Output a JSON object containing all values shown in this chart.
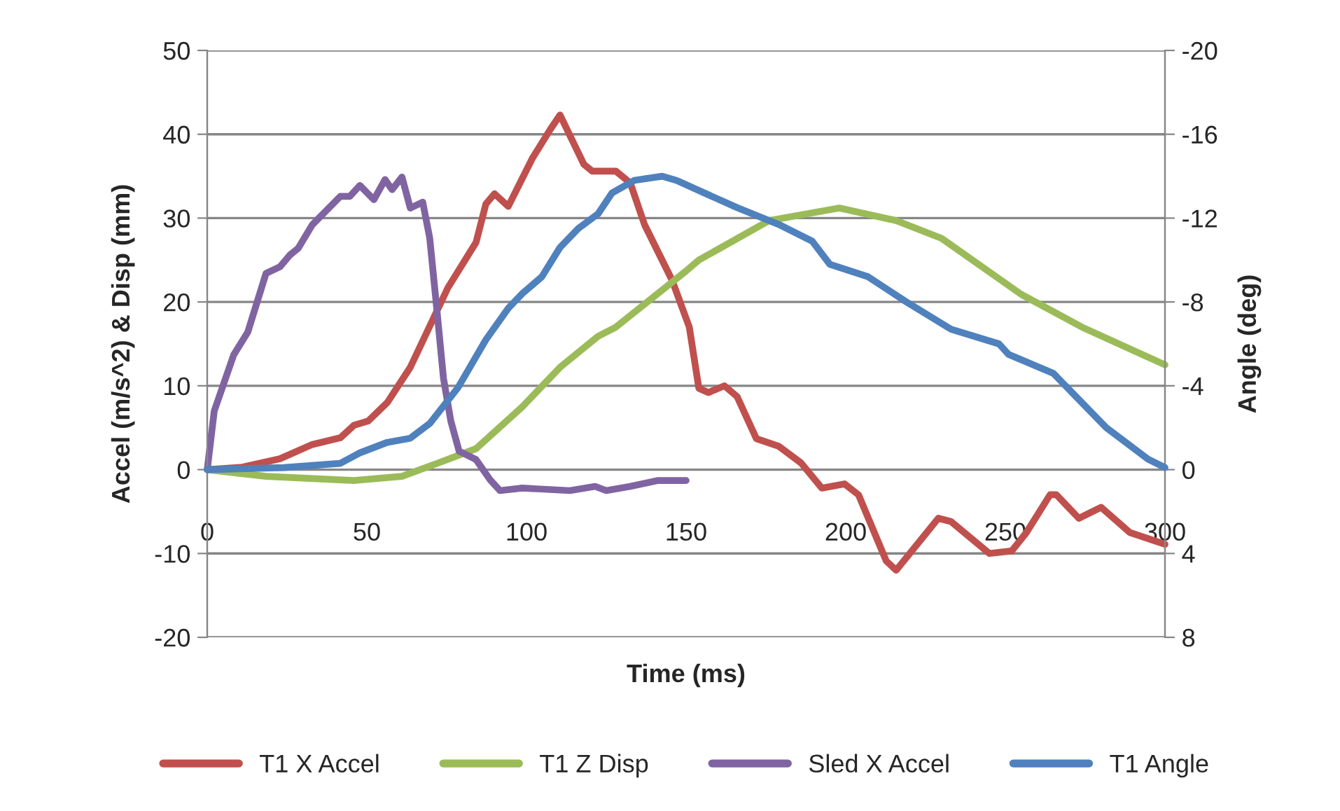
{
  "chart_data": {
    "type": "line",
    "xlabel": "Time (ms)",
    "ylabel": "Accel (m/s^2) & Disp (mm)",
    "y2label": "Angle (deg)",
    "xlim": [
      0,
      300
    ],
    "xticks": [
      0,
      50,
      100,
      150,
      200,
      250,
      300
    ],
    "ylim": [
      -20,
      50
    ],
    "yticks": [
      -20,
      -10,
      0,
      10,
      20,
      30,
      40,
      50
    ],
    "y2lim": [
      8,
      -20
    ],
    "y2ticks": [
      -20,
      -16,
      -12,
      -8,
      -4,
      0,
      4,
      8
    ],
    "grid": "y",
    "legend": "bottom",
    "marker": "none",
    "line_style": "solid",
    "series": [
      {
        "name": "T1 X Accel",
        "color": "#c0504d",
        "x": [
          0,
          11,
          22.8,
          32.9,
          41.7,
          46,
          50.4,
          56.4,
          63.6,
          75.4,
          84.2,
          87.3,
          90,
          94.3,
          101.8,
          107.5,
          110.5,
          118,
          120.6,
          128,
          132.5,
          137,
          145.6,
          151,
          154,
          157,
          162,
          166,
          172,
          179,
          186,
          192.5,
          199.6,
          204,
          212.7,
          215.8,
          229,
          233,
          245,
          252,
          256.6,
          264,
          266,
          273,
          280,
          289,
          300
        ],
        "values": [
          0,
          0.3,
          1.3,
          3,
          3.8,
          5.3,
          5.8,
          8,
          12.2,
          21.7,
          27.1,
          31.7,
          32.9,
          31.4,
          37.1,
          40.6,
          42.3,
          36.4,
          35.6,
          35.6,
          34.2,
          29.2,
          22.6,
          17,
          9.7,
          9.2,
          10,
          8.7,
          3.7,
          2.8,
          0.8,
          -2.2,
          -1.7,
          -3,
          -10.9,
          -12,
          -5.8,
          -6.2,
          -10,
          -9.7,
          -7.5,
          -3,
          -3,
          -5.8,
          -4.5,
          -7.5,
          -8.9
        ]
      },
      {
        "name": "T1 Z Disp",
        "color": "#9bbb59",
        "x": [
          0,
          18.4,
          46,
          61,
          72.4,
          84.2,
          98.7,
          110.5,
          122.4,
          128,
          150,
          154,
          176,
          198,
          215.8,
          230,
          255,
          274,
          300
        ],
        "values": [
          0,
          -0.8,
          -1.3,
          -0.8,
          0.8,
          2.5,
          7.5,
          12.2,
          15.9,
          17,
          23.7,
          25,
          29.7,
          31.2,
          29.7,
          27.6,
          20.9,
          17,
          12.5
        ]
      },
      {
        "name": "Sled X Accel",
        "color": "#8064a2",
        "x": [
          0,
          2.2,
          8.3,
          12.7,
          18.4,
          22.8,
          25.9,
          28.5,
          32.9,
          41.7,
          44.7,
          47.8,
          52.2,
          55.7,
          57.9,
          61,
          63.6,
          67.5,
          69.7,
          71.9,
          74,
          76.3,
          78.9,
          84.2,
          88.6,
          91.7,
          98.7,
          113.6,
          121.5,
          125,
          132.5,
          141,
          150
        ],
        "values": [
          0,
          7,
          13.7,
          16.4,
          23.4,
          24.2,
          25.6,
          26.4,
          29.2,
          32.6,
          32.6,
          33.9,
          32.2,
          34.6,
          33.4,
          34.9,
          31.2,
          31.9,
          27.6,
          19.2,
          10.9,
          5.8,
          2.2,
          1.2,
          -1.2,
          -2.5,
          -2.2,
          -2.5,
          -2,
          -2.5,
          -2,
          -1.3,
          -1.3
        ]
      },
      {
        "name": "T1 Angle",
        "color": "#4f81bd",
        "axis": "y2",
        "x": [
          0,
          24,
          41.7,
          47.8,
          56.4,
          63.6,
          69.7,
          78.5,
          87.3,
          94.3,
          98.7,
          104.8,
          110.5,
          116.2,
          122.4,
          126.8,
          133.8,
          142.5,
          147,
          155.7,
          166,
          179,
          189.5,
          195,
          207,
          219,
          233,
          248,
          251,
          265,
          281.6,
          294.7,
          300
        ],
        "values": [
          0,
          -0.1,
          -0.3,
          -0.8,
          -1.3,
          -1.5,
          -2.2,
          -3.9,
          -6.2,
          -7.7,
          -8.4,
          -9.2,
          -10.6,
          -11.5,
          -12.2,
          -13.2,
          -13.8,
          -14,
          -13.8,
          -13.2,
          -12.5,
          -11.7,
          -10.9,
          -9.8,
          -9.2,
          -8,
          -6.7,
          -6,
          -5.5,
          -4.6,
          -2,
          -0.5,
          -0.1
        ]
      }
    ]
  }
}
